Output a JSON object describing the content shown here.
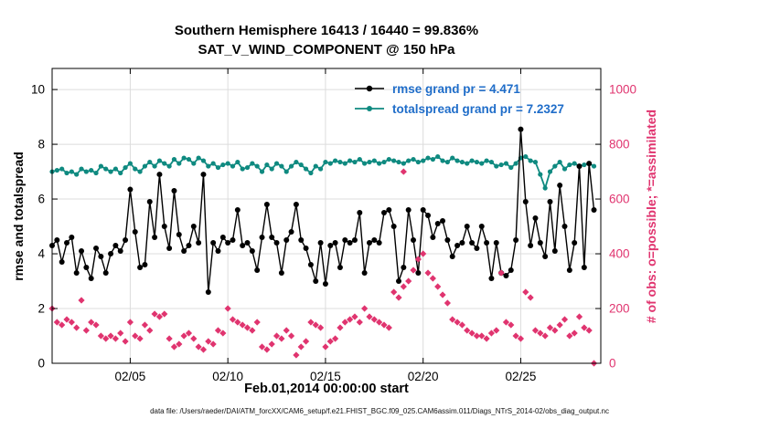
{
  "title": {
    "line1": "Southern Hemisphere 16413 / 16440 = 99.836%",
    "line2": "SAT_V_WIND_COMPONENT @ 150 hPa"
  },
  "caption": "data file: /Users/raeder/DAI/ATM_forcXX/CAM6_setup/f.e21.FHIST_BGC.f09_025.CAM6assim.011/Diags_NTrS_2014-02/obs_diag_output.nc",
  "legend": {
    "text_color": "#1f6dc9",
    "items": [
      {
        "label": "rmse grand pr = 4.471"
      },
      {
        "label": "totalspread grand pr = 7.2327"
      }
    ]
  },
  "colors": {
    "rmse": "#000000",
    "totalspread": "#0f8a80",
    "obs": "#e0346f",
    "grid": "#dcdcdc",
    "axis": "#000000"
  },
  "chart_data": {
    "type": "line",
    "title": "Southern Hemisphere 16413 / 16440 = 99.836%",
    "subtitle": "SAT_V_WIND_COMPONENT @ 150 hPa",
    "xlabel": "Feb.01,2014 00:00:00 start",
    "ylabel_left": "rmse and totalspread",
    "ylabel_right": "# of obs: o=possible; *=assimilated",
    "grid": true,
    "legend_position": "top-center-inside",
    "xlim": [
      1,
      29.1
    ],
    "ylim_left": [
      0,
      10.77
    ],
    "ylim_right": [
      0,
      1077
    ],
    "x_start": 1.0,
    "x_step": 0.25,
    "xticks": [
      {
        "v": 5,
        "label": "02/05"
      },
      {
        "v": 10,
        "label": "02/10"
      },
      {
        "v": 15,
        "label": "02/15"
      },
      {
        "v": 20,
        "label": "02/20"
      },
      {
        "v": 25,
        "label": "02/25"
      }
    ],
    "yticks_left": [
      {
        "v": 0,
        "label": "0"
      },
      {
        "v": 2,
        "label": "2"
      },
      {
        "v": 4,
        "label": "4"
      },
      {
        "v": 6,
        "label": "6"
      },
      {
        "v": 8,
        "label": "8"
      },
      {
        "v": 10,
        "label": "10"
      }
    ],
    "yticks_right": [
      {
        "v": 0,
        "label": "0"
      },
      {
        "v": 200,
        "label": "200"
      },
      {
        "v": 400,
        "label": "400"
      },
      {
        "v": 600,
        "label": "600"
      },
      {
        "v": 800,
        "label": "800"
      },
      {
        "v": 1000,
        "label": "1000"
      }
    ],
    "series": [
      {
        "name": "totalspread",
        "grand_pr": 7.2327,
        "axis": "left",
        "marker": "circle",
        "color": "#0f8a80",
        "values": [
          7.0,
          7.05,
          7.1,
          6.95,
          7.0,
          6.9,
          7.1,
          7.0,
          7.05,
          6.95,
          7.2,
          7.1,
          7.0,
          7.1,
          6.95,
          7.15,
          7.3,
          7.1,
          7.0,
          7.2,
          7.35,
          7.2,
          7.4,
          7.3,
          7.2,
          7.45,
          7.3,
          7.5,
          7.45,
          7.3,
          7.5,
          7.4,
          7.2,
          7.3,
          7.15,
          7.25,
          7.3,
          7.2,
          7.35,
          7.1,
          7.15,
          7.3,
          7.2,
          7.0,
          7.25,
          7.1,
          7.3,
          7.2,
          7.0,
          7.2,
          7.35,
          7.25,
          7.1,
          6.95,
          7.2,
          7.1,
          7.35,
          7.3,
          7.4,
          7.35,
          7.3,
          7.4,
          7.35,
          7.45,
          7.3,
          7.35,
          7.4,
          7.3,
          7.35,
          7.45,
          7.4,
          7.35,
          7.3,
          7.4,
          7.45,
          7.35,
          7.4,
          7.5,
          7.45,
          7.55,
          7.4,
          7.35,
          7.5,
          7.4,
          7.35,
          7.3,
          7.4,
          7.35,
          7.3,
          7.4,
          7.35,
          7.2,
          7.25,
          7.3,
          7.15,
          7.3,
          7.5,
          7.55,
          7.4,
          7.35,
          6.9,
          6.4,
          7.0,
          7.2,
          7.35,
          7.1,
          7.25,
          7.3,
          7.2,
          7.25,
          7.3,
          7.2
        ]
      },
      {
        "name": "rmse",
        "grand_pr": 4.471,
        "axis": "left",
        "marker": "circle",
        "color": "#000000",
        "values": [
          4.3,
          4.5,
          3.7,
          4.4,
          4.6,
          3.3,
          4.1,
          3.5,
          3.1,
          4.2,
          3.9,
          3.3,
          4.0,
          4.3,
          4.1,
          4.5,
          6.35,
          4.8,
          3.5,
          3.6,
          5.9,
          4.6,
          6.9,
          5.0,
          4.2,
          6.3,
          4.7,
          4.1,
          4.3,
          5.0,
          4.4,
          6.9,
          2.6,
          4.4,
          4.1,
          4.6,
          4.4,
          4.5,
          5.6,
          4.3,
          4.4,
          4.1,
          3.4,
          4.6,
          5.8,
          4.6,
          4.4,
          3.3,
          4.5,
          4.8,
          5.8,
          4.5,
          4.2,
          3.6,
          3.0,
          4.4,
          2.9,
          4.3,
          4.4,
          3.5,
          4.5,
          4.4,
          4.5,
          5.5,
          3.3,
          4.4,
          4.5,
          4.4,
          5.5,
          5.6,
          5.0,
          3.0,
          3.5,
          5.6,
          4.5,
          3.3,
          5.6,
          5.4,
          4.6,
          5.1,
          5.2,
          4.5,
          3.9,
          4.3,
          4.4,
          5.0,
          4.4,
          4.2,
          5.0,
          4.4,
          3.1,
          4.4,
          3.3,
          3.2,
          3.4,
          4.5,
          8.55,
          5.9,
          4.3,
          5.3,
          4.4,
          3.9,
          5.9,
          4.1,
          6.5,
          5.0,
          3.4,
          4.4,
          7.2,
          3.5,
          7.3,
          5.6
        ]
      },
      {
        "name": "obs_assimilated",
        "axis": "right",
        "marker": "diamond",
        "color": "#e0346f",
        "values": [
          200,
          150,
          140,
          160,
          150,
          130,
          230,
          120,
          150,
          140,
          100,
          90,
          100,
          90,
          110,
          80,
          150,
          100,
          90,
          140,
          120,
          180,
          170,
          180,
          90,
          60,
          70,
          100,
          110,
          90,
          60,
          50,
          80,
          70,
          120,
          110,
          200,
          160,
          150,
          140,
          130,
          120,
          150,
          60,
          50,
          70,
          100,
          90,
          120,
          100,
          30,
          60,
          80,
          150,
          140,
          130,
          60,
          80,
          90,
          130,
          150,
          160,
          170,
          150,
          200,
          170,
          160,
          150,
          140,
          130,
          260,
          240,
          280,
          300,
          340,
          380,
          400,
          330,
          310,
          280,
          250,
          220,
          160,
          150,
          140,
          120,
          110,
          100,
          100,
          90,
          110,
          120,
          330,
          150,
          140,
          100,
          90,
          260,
          240,
          120,
          110,
          100,
          130,
          120,
          140,
          160,
          100,
          110,
          170,
          130,
          120,
          0
        ]
      }
    ],
    "extra_points": [
      {
        "series": "obs_possible",
        "x": 19.0,
        "y": 700,
        "marker": "diamond",
        "color": "#e0346f"
      }
    ]
  }
}
